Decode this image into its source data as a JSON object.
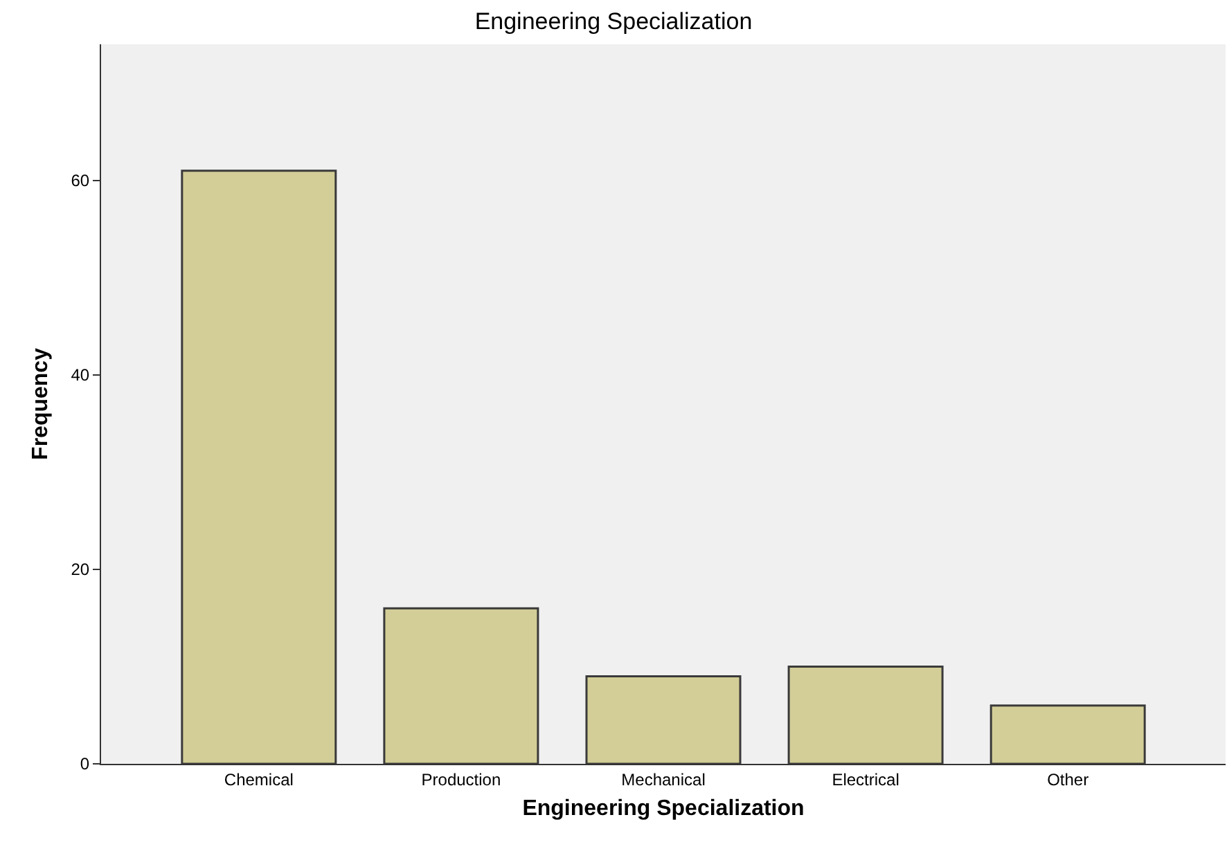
{
  "chart_data": {
    "type": "bar",
    "title": "Engineering Specialization",
    "xlabel": "Engineering Specialization",
    "ylabel": "Frequency",
    "categories": [
      "Chemical",
      "Production",
      "Mechanical",
      "Electrical",
      "Other"
    ],
    "values": [
      61,
      16,
      9,
      10,
      6
    ],
    "color": "#d3ce97",
    "ylim": [
      0,
      74
    ],
    "yticks": [
      0,
      20,
      40,
      60
    ],
    "grid": false,
    "legend": false
  }
}
